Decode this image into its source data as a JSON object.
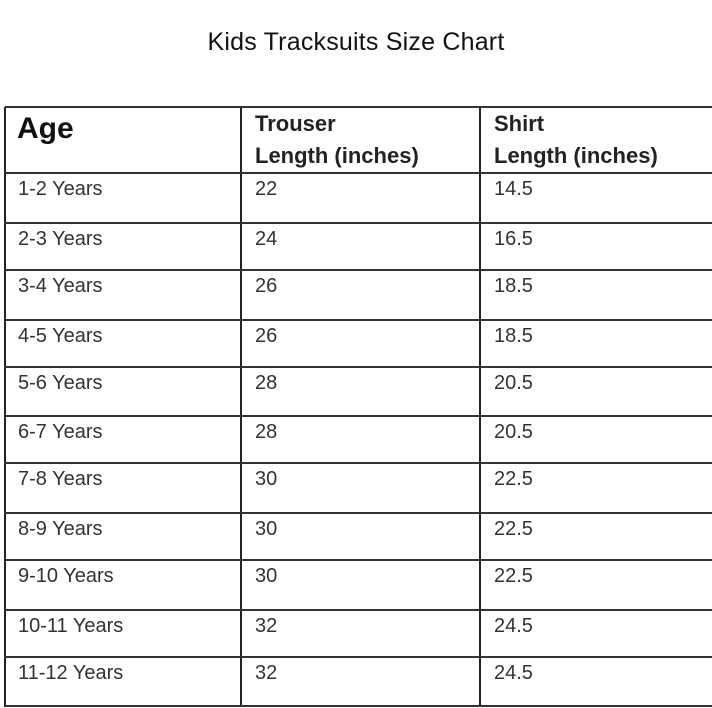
{
  "title": "Kids  Tracksuits Size Chart",
  "table": {
    "headers": [
      "Age",
      "Trouser Length (inches)",
      "Shirt Length (inches)"
    ],
    "header_lines": {
      "trouser": [
        "Trouser",
        "Length  (inches)"
      ],
      "shirt": [
        "Shirt",
        "Length  (inches)"
      ]
    },
    "rows": [
      [
        "1-2 Years",
        "22",
        "14.5"
      ],
      [
        "2-3 Years",
        "24",
        "16.5"
      ],
      [
        "3-4 Years",
        "26",
        "18.5"
      ],
      [
        "4-5 Years",
        "26",
        "18.5"
      ],
      [
        "5-6 Years",
        "28",
        "20.5"
      ],
      [
        "6-7 Years",
        "28",
        "20.5"
      ],
      [
        "7-8 Years",
        "30",
        "22.5"
      ],
      [
        "8-9 Years",
        "30",
        "22.5"
      ],
      [
        "9-10 Years",
        "30",
        "22.5"
      ],
      [
        "10-11 Years",
        "32",
        "24.5"
      ],
      [
        "11-12 Years",
        "32",
        "24.5"
      ]
    ]
  }
}
